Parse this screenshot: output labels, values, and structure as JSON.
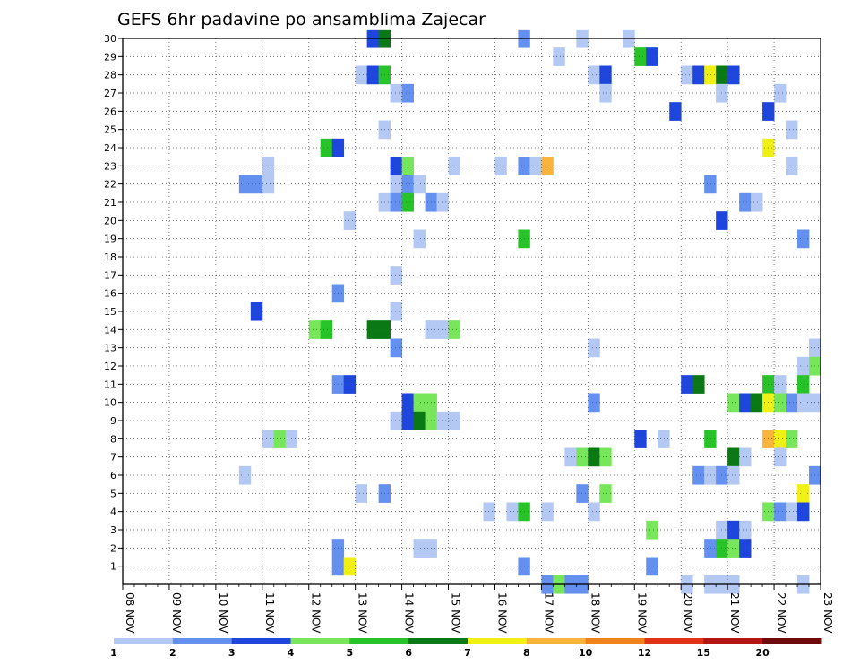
{
  "chart_data": {
    "type": "heatmap",
    "title": "GEFS 6hr padavine po ansamblima Zajecar",
    "x_tick_labels": [
      "08 NOV",
      "09 NOV",
      "10 NOV",
      "11 NOV",
      "12 NOV",
      "13 NOV",
      "14 NOV",
      "15 NOV",
      "16 NOV",
      "17 NOV",
      "18 NOV",
      "19 NOV",
      "20 NOV",
      "21 NOV",
      "22 NOV",
      "23 NOV"
    ],
    "y_tick_labels": [
      "1",
      "2",
      "3",
      "4",
      "5",
      "6",
      "7",
      "8",
      "9",
      "10",
      "11",
      "12",
      "13",
      "14",
      "15",
      "16",
      "17",
      "18",
      "19",
      "20",
      "21",
      "22",
      "23",
      "24",
      "25",
      "26",
      "27",
      "28",
      "29",
      "30"
    ],
    "x_unit": "6-hour steps from 08 NOV 00Z",
    "ylim": [
      0,
      30
    ],
    "grid": true,
    "legend_thresholds": [
      "1",
      "2",
      "3",
      "4",
      "5",
      "6",
      "7",
      "8",
      "10",
      "12",
      "15",
      "20"
    ],
    "colors": [
      "#b4c8f4",
      "#6490f0",
      "#1e46dc",
      "#78e65a",
      "#28c328",
      "#0a7814",
      "#f0f014",
      "#fab43c",
      "#f0821e",
      "#e03214",
      "#b41414",
      "#6e0a0a"
    ],
    "cells": [
      [
        21,
        30,
        3
      ],
      [
        22,
        30,
        6
      ],
      [
        34,
        30,
        2
      ],
      [
        39,
        30,
        1
      ],
      [
        43,
        30,
        1
      ],
      [
        37,
        29,
        1
      ],
      [
        44,
        29,
        5
      ],
      [
        45,
        29,
        3
      ],
      [
        20,
        28,
        1
      ],
      [
        21,
        28,
        3
      ],
      [
        22,
        28,
        5
      ],
      [
        40,
        28,
        1
      ],
      [
        41,
        28,
        3
      ],
      [
        48,
        28,
        1
      ],
      [
        49,
        28,
        3
      ],
      [
        50,
        28,
        7
      ],
      [
        51,
        28,
        6
      ],
      [
        52,
        28,
        3
      ],
      [
        23,
        27,
        1
      ],
      [
        24,
        27,
        2
      ],
      [
        41,
        27,
        1
      ],
      [
        51,
        27,
        1
      ],
      [
        56,
        27,
        1
      ],
      [
        47,
        26,
        3
      ],
      [
        55,
        26,
        3
      ],
      [
        22,
        25,
        1
      ],
      [
        57,
        25,
        1
      ],
      [
        17,
        24,
        5
      ],
      [
        18,
        24,
        3
      ],
      [
        55,
        24,
        7
      ],
      [
        12,
        23,
        1
      ],
      [
        23,
        23,
        3
      ],
      [
        24,
        23,
        4
      ],
      [
        28,
        23,
        1
      ],
      [
        32,
        23,
        1
      ],
      [
        34,
        23,
        2
      ],
      [
        35,
        23,
        1
      ],
      [
        36,
        23,
        8
      ],
      [
        57,
        23,
        1
      ],
      [
        10,
        22,
        2
      ],
      [
        11,
        22,
        2
      ],
      [
        12,
        22,
        1
      ],
      [
        23,
        22,
        1
      ],
      [
        24,
        22,
        2
      ],
      [
        25,
        22,
        1
      ],
      [
        50,
        22,
        2
      ],
      [
        22,
        21,
        1
      ],
      [
        23,
        21,
        2
      ],
      [
        24,
        21,
        5
      ],
      [
        26,
        21,
        2
      ],
      [
        27,
        21,
        1
      ],
      [
        53,
        21,
        2
      ],
      [
        54,
        21,
        1
      ],
      [
        19,
        20,
        1
      ],
      [
        51,
        20,
        3
      ],
      [
        25,
        19,
        1
      ],
      [
        34,
        19,
        5
      ],
      [
        58,
        19,
        2
      ],
      [
        23,
        17,
        1
      ],
      [
        18,
        16,
        2
      ],
      [
        11,
        15,
        3
      ],
      [
        23,
        15,
        1
      ],
      [
        16,
        14,
        4
      ],
      [
        17,
        14,
        5
      ],
      [
        21,
        14,
        6
      ],
      [
        22,
        14,
        6
      ],
      [
        26,
        14,
        1
      ],
      [
        27,
        14,
        1
      ],
      [
        28,
        14,
        4
      ],
      [
        23,
        13,
        2
      ],
      [
        40,
        13,
        1
      ],
      [
        59,
        13,
        1
      ],
      [
        58,
        12,
        1
      ],
      [
        59,
        12,
        4
      ],
      [
        18,
        11,
        2
      ],
      [
        19,
        11,
        3
      ],
      [
        48,
        11,
        3
      ],
      [
        49,
        11,
        6
      ],
      [
        55,
        11,
        5
      ],
      [
        56,
        11,
        1
      ],
      [
        58,
        11,
        5
      ],
      [
        24,
        10,
        3
      ],
      [
        25,
        10,
        4
      ],
      [
        26,
        10,
        4
      ],
      [
        40,
        10,
        2
      ],
      [
        52,
        10,
        4
      ],
      [
        53,
        10,
        3
      ],
      [
        54,
        10,
        6
      ],
      [
        55,
        10,
        7
      ],
      [
        56,
        10,
        4
      ],
      [
        57,
        10,
        2
      ],
      [
        58,
        10,
        1
      ],
      [
        59,
        10,
        1
      ],
      [
        23,
        9,
        1
      ],
      [
        24,
        9,
        3
      ],
      [
        25,
        9,
        6
      ],
      [
        26,
        9,
        4
      ],
      [
        27,
        9,
        1
      ],
      [
        28,
        9,
        1
      ],
      [
        12,
        8,
        1
      ],
      [
        13,
        8,
        4
      ],
      [
        14,
        8,
        1
      ],
      [
        44,
        8,
        3
      ],
      [
        46,
        8,
        1
      ],
      [
        50,
        8,
        5
      ],
      [
        55,
        8,
        8
      ],
      [
        56,
        8,
        7
      ],
      [
        57,
        8,
        4
      ],
      [
        38,
        7,
        1
      ],
      [
        39,
        7,
        4
      ],
      [
        40,
        7,
        6
      ],
      [
        41,
        7,
        4
      ],
      [
        52,
        7,
        6
      ],
      [
        53,
        7,
        1
      ],
      [
        56,
        7,
        1
      ],
      [
        10,
        6,
        1
      ],
      [
        49,
        6,
        2
      ],
      [
        50,
        6,
        1
      ],
      [
        51,
        6,
        2
      ],
      [
        52,
        6,
        1
      ],
      [
        59,
        6,
        2
      ],
      [
        20,
        5,
        1
      ],
      [
        22,
        5,
        2
      ],
      [
        39,
        5,
        2
      ],
      [
        41,
        5,
        4
      ],
      [
        58,
        5,
        7
      ],
      [
        31,
        4,
        1
      ],
      [
        33,
        4,
        1
      ],
      [
        34,
        4,
        5
      ],
      [
        36,
        4,
        1
      ],
      [
        40,
        4,
        1
      ],
      [
        55,
        4,
        4
      ],
      [
        56,
        4,
        2
      ],
      [
        57,
        4,
        1
      ],
      [
        58,
        4,
        3
      ],
      [
        45,
        3,
        4
      ],
      [
        51,
        3,
        1
      ],
      [
        52,
        3,
        3
      ],
      [
        53,
        3,
        1
      ],
      [
        18,
        2,
        2
      ],
      [
        25,
        2,
        1
      ],
      [
        26,
        2,
        1
      ],
      [
        50,
        2,
        2
      ],
      [
        51,
        2,
        5
      ],
      [
        52,
        2,
        4
      ],
      [
        53,
        2,
        3
      ],
      [
        18,
        1,
        2
      ],
      [
        19,
        1,
        7
      ],
      [
        34,
        1,
        2
      ],
      [
        45,
        1,
        2
      ],
      [
        36,
        0,
        2
      ],
      [
        37,
        0,
        4
      ],
      [
        38,
        0,
        2
      ],
      [
        39,
        0,
        2
      ],
      [
        48,
        0,
        1
      ],
      [
        50,
        0,
        1
      ],
      [
        51,
        0,
        1
      ],
      [
        52,
        0,
        1
      ],
      [
        58,
        0,
        1
      ]
    ]
  }
}
